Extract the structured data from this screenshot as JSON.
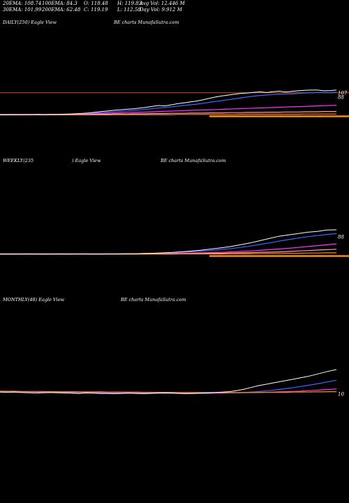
{
  "header": {
    "row1": [
      {
        "label": "20EMA:",
        "value": "108.74"
      },
      {
        "label": "100EMA:",
        "value": "84.3"
      },
      {
        "label": "O:",
        "value": "118.48"
      },
      {
        "label": "H:",
        "value": "119.83"
      },
      {
        "label": "Avg Vol:",
        "value": "12.446",
        "unit": "M"
      }
    ],
    "row2": [
      {
        "label": "30EMA:",
        "value": "101.99"
      },
      {
        "label": "200EMA:",
        "value": "62.48"
      },
      {
        "label": "C:",
        "value": "119.19"
      },
      {
        "label": "L:",
        "value": "112.58"
      },
      {
        "label": "Day Vol:",
        "value": "9.912",
        "unit": "M"
      }
    ]
  },
  "colors": {
    "background": "#000000",
    "price": "#ffffff",
    "ema_blue": "#3f66ff",
    "ema_magenta": "#ff33ff",
    "ema_pink": "#ff99cc",
    "ema_orange": "#ff8c00",
    "hline": "#cc5500",
    "text": "#ffffff"
  },
  "chart_data": [
    {
      "type": "line",
      "panel": "daily",
      "labels": {
        "left": "DAILY(250) Eagle  View",
        "center": "BE charts MunafaSutra.com"
      },
      "ticks": [
        {
          "value": 107,
          "text": "107"
        },
        {
          "value": 88,
          "text": "88"
        }
      ],
      "ylim": [
        0,
        125
      ],
      "series": [
        {
          "role": "price",
          "color": "#ffffff",
          "values": [
            8,
            8,
            9,
            8,
            9,
            9,
            10,
            9,
            10,
            10,
            11,
            12,
            13,
            15,
            17,
            20,
            23,
            26,
            29,
            31,
            33,
            35,
            38,
            42,
            46,
            50,
            48,
            53,
            58,
            62,
            66,
            70,
            76,
            82,
            88,
            93,
            97,
            101,
            104,
            106,
            109,
            111,
            108,
            112,
            114,
            110,
            113,
            116,
            118,
            119,
            119,
            116,
            117,
            119
          ]
        },
        {
          "role": "ema",
          "color": "#3f66ff",
          "values": [
            10,
            10,
            10,
            10,
            10,
            10,
            10,
            10,
            10,
            10,
            11,
            11,
            12,
            13,
            14,
            16,
            18,
            20,
            22,
            24,
            26,
            28,
            30,
            33,
            36,
            39,
            41,
            44,
            47,
            50,
            53,
            56,
            60,
            64,
            68,
            72,
            76,
            80,
            84,
            88,
            92,
            95,
            97,
            99,
            100,
            101,
            102,
            104,
            106,
            107,
            108,
            108,
            108,
            109
          ]
        },
        {
          "role": "ema",
          "color": "#ff33ff",
          "values": [
            10,
            10,
            10,
            10,
            10,
            10,
            10,
            10,
            10,
            10,
            10,
            10,
            11,
            11,
            12,
            13,
            14,
            15,
            16,
            17,
            18,
            19,
            20,
            21,
            22,
            23,
            24,
            25,
            26,
            27,
            28,
            29,
            30,
            31,
            32,
            33,
            34,
            35,
            36,
            37,
            38,
            39,
            40,
            41,
            42,
            43,
            44,
            45,
            46,
            47,
            48,
            49,
            50,
            51
          ]
        },
        {
          "role": "ema",
          "color": "#ff99cc",
          "values": [
            9,
            9,
            9,
            9,
            9,
            9,
            9,
            9,
            9,
            9,
            9,
            9,
            10,
            10,
            10,
            11,
            11,
            11,
            12,
            12,
            12,
            13,
            13,
            13,
            14,
            14,
            14,
            15,
            15,
            15,
            16,
            16,
            16,
            17,
            17,
            17,
            18,
            18,
            18,
            19,
            19,
            19,
            20,
            20,
            20,
            21,
            21,
            21,
            22,
            22,
            22,
            23,
            23,
            23
          ]
        },
        {
          "role": "ema",
          "color": "#ff8c00",
          "values": [
            8,
            8,
            8,
            8,
            8,
            8,
            8,
            8,
            8,
            8,
            8,
            8,
            8,
            8,
            8,
            8,
            8,
            8,
            9,
            9,
            9,
            9,
            9,
            9,
            9,
            9,
            9,
            9,
            10,
            10,
            10,
            10,
            10,
            10,
            10,
            10,
            10,
            10,
            11,
            11,
            11,
            11,
            11,
            11,
            11,
            11,
            11,
            11,
            12,
            12,
            12,
            12,
            12,
            12
          ]
        }
      ]
    },
    {
      "type": "line",
      "panel": "weekly",
      "labels": {
        "left": "WEEKLY(235",
        "mid": ") Eagle  View",
        "center": "BE charts MunafaSutra.com"
      },
      "ticks": [
        {
          "value": 88,
          "text": "88"
        },
        {
          "value": 50,
          "text": ""
        }
      ],
      "ylim": [
        0,
        125
      ],
      "series": [
        {
          "role": "price",
          "color": "#ffffff",
          "values": [
            10,
            10,
            10,
            11,
            10,
            10,
            11,
            10,
            11,
            11,
            10,
            11,
            11,
            12,
            12,
            13,
            14,
            16,
            18,
            21,
            24,
            28,
            33,
            38,
            44,
            52,
            60,
            70,
            80,
            90,
            96,
            102,
            108,
            112,
            118,
            119
          ]
        },
        {
          "role": "ema",
          "color": "#3f66ff",
          "values": [
            11,
            11,
            11,
            11,
            11,
            11,
            11,
            11,
            11,
            11,
            11,
            11,
            11,
            12,
            12,
            13,
            14,
            15,
            17,
            19,
            21,
            24,
            27,
            31,
            35,
            40,
            46,
            53,
            60,
            68,
            75,
            82,
            88,
            93,
            98,
            102
          ]
        },
        {
          "role": "ema",
          "color": "#ff33ff",
          "values": [
            11,
            11,
            11,
            11,
            11,
            11,
            11,
            11,
            11,
            11,
            11,
            11,
            11,
            11,
            12,
            12,
            12,
            13,
            13,
            14,
            15,
            16,
            17,
            18,
            20,
            22,
            24,
            27,
            30,
            33,
            36,
            40,
            44,
            48,
            52,
            56
          ]
        },
        {
          "role": "ema",
          "color": "#ff99cc",
          "values": [
            11,
            11,
            11,
            11,
            11,
            11,
            11,
            11,
            11,
            11,
            11,
            11,
            11,
            11,
            11,
            11,
            12,
            12,
            12,
            12,
            13,
            13,
            14,
            14,
            15,
            16,
            17,
            18,
            19,
            20,
            22,
            24,
            26,
            28,
            30,
            32
          ]
        },
        {
          "role": "ema",
          "color": "#ff8c00",
          "values": [
            10,
            10,
            10,
            10,
            10,
            10,
            10,
            10,
            10,
            10,
            10,
            10,
            10,
            10,
            10,
            10,
            10,
            10,
            10,
            11,
            11,
            11,
            11,
            11,
            12,
            12,
            12,
            13,
            13,
            13,
            14,
            14,
            15,
            15,
            16,
            16
          ]
        }
      ]
    },
    {
      "type": "line",
      "panel": "monthly",
      "labels": {
        "left": "MONTHLY(48) Eagle  View",
        "center": "BE charts MunafaSutra.com"
      },
      "ticks": [
        {
          "value": 10,
          "text": "10"
        }
      ],
      "ylim": [
        0,
        125
      ],
      "series": [
        {
          "role": "price",
          "color": "#ffffff",
          "values": [
            18,
            17,
            18,
            16,
            15,
            14,
            15,
            16,
            15,
            14,
            13,
            12,
            14,
            13,
            12,
            12,
            11,
            12,
            13,
            12,
            11,
            12,
            13,
            14,
            13,
            12,
            11,
            12,
            13,
            14,
            16,
            18,
            20,
            24,
            30,
            38,
            46,
            52,
            58,
            64,
            70,
            76,
            82,
            88,
            96,
            104,
            112,
            119
          ]
        },
        {
          "role": "ema",
          "color": "#3f66ff",
          "values": [
            20,
            20,
            19,
            19,
            18,
            18,
            17,
            17,
            16,
            16,
            16,
            15,
            15,
            15,
            14,
            14,
            14,
            13,
            13,
            13,
            13,
            13,
            13,
            13,
            13,
            13,
            13,
            12,
            12,
            12,
            13,
            13,
            14,
            15,
            16,
            18,
            20,
            23,
            26,
            30,
            34,
            38,
            43,
            48,
            53,
            59,
            65,
            71
          ]
        },
        {
          "role": "ema",
          "color": "#ff33ff",
          "values": [
            21,
            21,
            21,
            20,
            20,
            20,
            19,
            19,
            19,
            18,
            18,
            18,
            17,
            17,
            17,
            16,
            16,
            16,
            16,
            15,
            15,
            15,
            15,
            15,
            15,
            14,
            14,
            14,
            14,
            14,
            14,
            14,
            15,
            15,
            15,
            16,
            16,
            17,
            18,
            19,
            20,
            21,
            22,
            24,
            26,
            28,
            30,
            32
          ]
        },
        {
          "role": "ema",
          "color": "#ff8c00",
          "values": [
            22,
            22,
            22,
            21,
            21,
            21,
            21,
            20,
            20,
            20,
            20,
            19,
            19,
            19,
            19,
            18,
            18,
            18,
            18,
            18,
            17,
            17,
            17,
            17,
            17,
            16,
            16,
            16,
            16,
            16,
            16,
            16,
            16,
            16,
            16,
            16,
            16,
            17,
            17,
            17,
            17,
            18,
            18,
            18,
            19,
            19,
            20,
            20
          ]
        }
      ]
    }
  ]
}
